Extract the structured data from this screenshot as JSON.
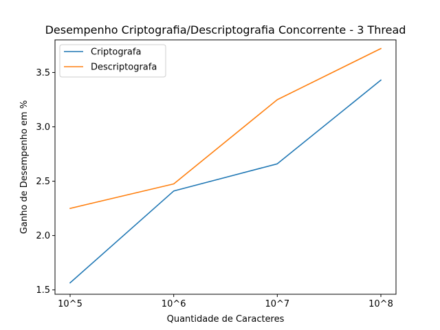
{
  "chart_data": {
    "type": "line",
    "title": "Desempenho Criptografia/Descriptografia Concorrente - 3 Thread",
    "xlabel": "Quantidade de Caracteres",
    "ylabel": "Ganho de Desempenho em %",
    "categories": [
      "10^5",
      "10^6",
      "10^7",
      "10^8"
    ],
    "yticks": [
      "1.5",
      "2.0",
      "2.5",
      "3.0",
      "3.5"
    ],
    "ylim": [
      1.46,
      3.8
    ],
    "grid": false,
    "legend_position": "top-left",
    "series": [
      {
        "name": "Criptografa",
        "color": "#1f77b4",
        "values": [
          1.565,
          2.41,
          2.66,
          3.43
        ]
      },
      {
        "name": "Descriptografa",
        "color": "#ff7f0e",
        "values": [
          2.25,
          2.475,
          3.25,
          3.72
        ]
      }
    ]
  }
}
